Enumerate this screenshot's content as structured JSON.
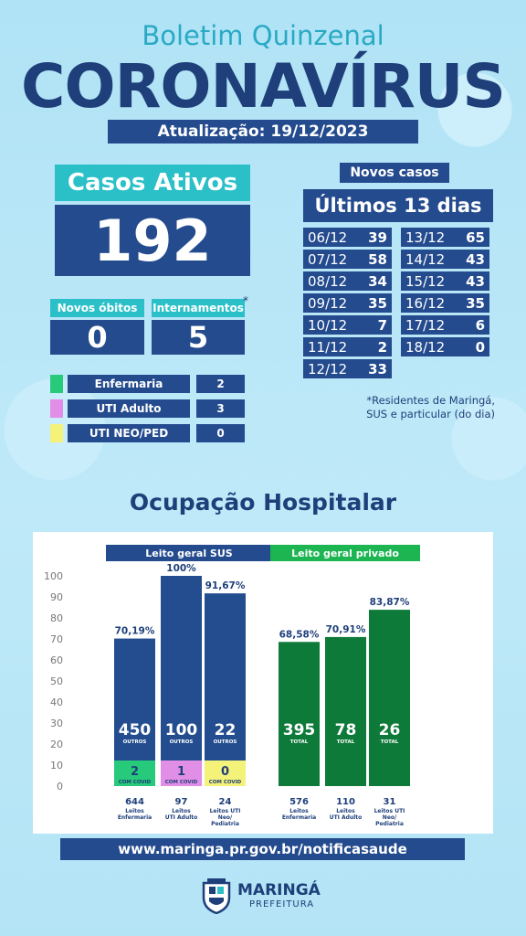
{
  "header": {
    "subtitle": "Boletim Quinzenal",
    "title": "CORONAVÍRUS",
    "update": "Atualização: 19/12/2023"
  },
  "casos_ativos": {
    "label": "Casos Ativos",
    "value": "192"
  },
  "novos_obitos": {
    "label": "Novos óbitos",
    "value": "0"
  },
  "internamentos": {
    "label": "Internamentos",
    "star": "*",
    "value": "5"
  },
  "legend": [
    {
      "label": "Enfermaria",
      "value": "2",
      "color": "#27c97a"
    },
    {
      "label": "UTI Adulto",
      "value": "3",
      "color": "#e08ee6"
    },
    {
      "label": "UTI NEO/PED",
      "value": "0",
      "color": "#f5f27a"
    }
  ],
  "novos_casos": {
    "label": "Novos casos",
    "period": "Últimos 13 dias",
    "left": [
      {
        "date": "06/12",
        "value": "39"
      },
      {
        "date": "07/12",
        "value": "58"
      },
      {
        "date": "08/12",
        "value": "34"
      },
      {
        "date": "09/12",
        "value": "35"
      },
      {
        "date": "10/12",
        "value": "7"
      },
      {
        "date": "11/12",
        "value": "2"
      },
      {
        "date": "12/12",
        "value": "33"
      }
    ],
    "right": [
      {
        "date": "13/12",
        "value": "65"
      },
      {
        "date": "14/12",
        "value": "43"
      },
      {
        "date": "15/12",
        "value": "43"
      },
      {
        "date": "16/12",
        "value": "35"
      },
      {
        "date": "17/12",
        "value": "6"
      },
      {
        "date": "18/12",
        "value": "0"
      }
    ],
    "note_line1": "*Residentes de Maringá,",
    "note_line2": "SUS e particular (do dia)"
  },
  "ocupacao_title": "Ocupação Hospitalar",
  "chart_data": {
    "type": "bar",
    "ylim": [
      0,
      100
    ],
    "yticks": [
      0,
      10,
      20,
      30,
      40,
      50,
      60,
      70,
      80,
      90,
      100
    ],
    "groups": [
      {
        "name": "Leito geral SUS",
        "color": "#234d8f",
        "header_color": "#244b8e",
        "bars": [
          {
            "percent": 70.19,
            "percent_label": "70,19%",
            "big_value": "450",
            "big_label": "OUTROS",
            "covid_value": "2",
            "covid_label": "COM COVID",
            "covid_color": "#27c97a",
            "total": "644",
            "category": [
              "Leitos",
              "Enfermaria"
            ]
          },
          {
            "percent": 100,
            "percent_label": "100%",
            "big_value": "100",
            "big_label": "OUTROS",
            "covid_value": "1",
            "covid_label": "COM COVID",
            "covid_color": "#e08ee6",
            "total": "97",
            "category": [
              "Leitos",
              "UTI Adulto"
            ]
          },
          {
            "percent": 91.67,
            "percent_label": "91,67%",
            "big_value": "22",
            "big_label": "OUTROS",
            "covid_value": "0",
            "covid_label": "COM COVID",
            "covid_color": "#f5f27a",
            "total": "24",
            "category": [
              "Leitos UTI",
              "Neo/",
              "Pediatria"
            ]
          }
        ]
      },
      {
        "name": "Leito geral privado",
        "color": "#0e7a3a",
        "header_color": "#1cb552",
        "bars": [
          {
            "percent": 68.58,
            "percent_label": "68,58%",
            "big_value": "395",
            "big_label": "TOTAL",
            "total": "576",
            "category": [
              "Leitos",
              "Enfermaria"
            ]
          },
          {
            "percent": 70.91,
            "percent_label": "70,91%",
            "big_value": "78",
            "big_label": "TOTAL",
            "total": "110",
            "category": [
              "Leitos",
              "UTI Adulto"
            ]
          },
          {
            "percent": 83.87,
            "percent_label": "83,87%",
            "big_value": "26",
            "big_label": "TOTAL",
            "total": "31",
            "category": [
              "Leitos UTI",
              "Neo/",
              "Pediatria"
            ]
          }
        ]
      }
    ]
  },
  "footer": {
    "url": "www.maringa.pr.gov.br/notificasaude",
    "logo_name": "MARINGÁ",
    "logo_sub": "PREFEITURA",
    "logo_icon": "coat-of-arms-icon"
  }
}
